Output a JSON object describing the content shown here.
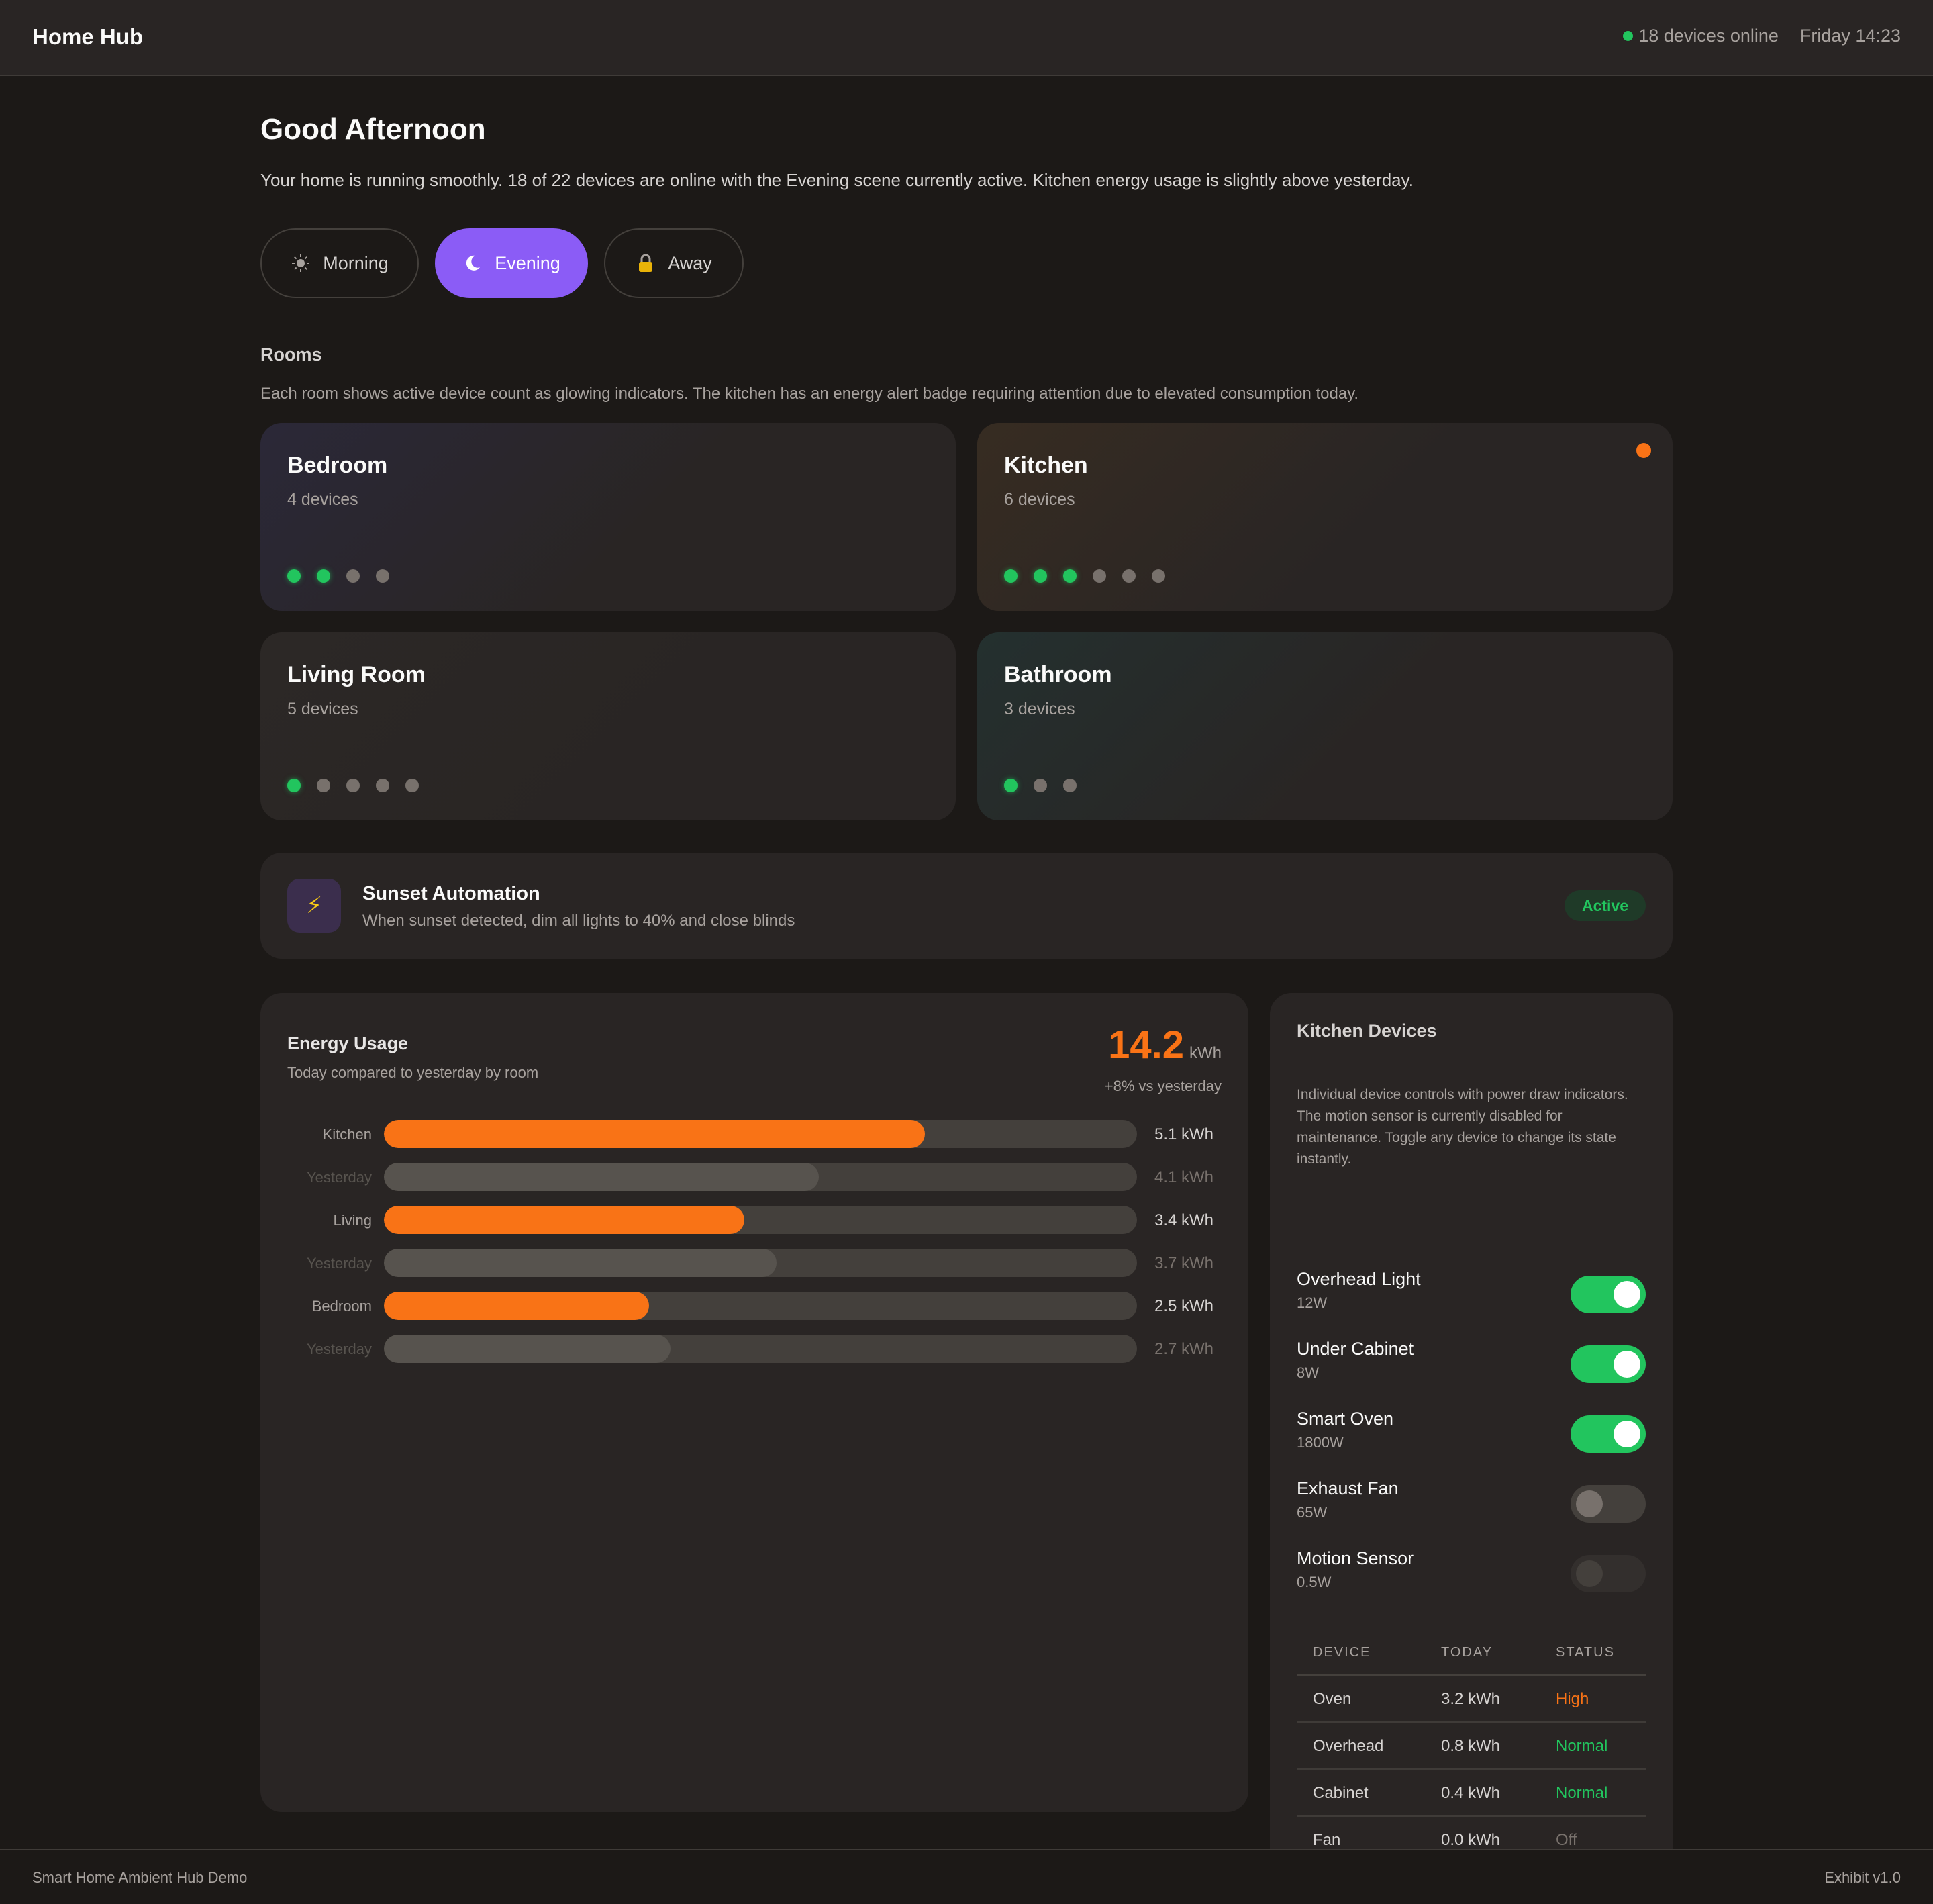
{
  "header": {
    "brand": "Home Hub",
    "status": "18 devices online",
    "datetime": "Friday 14:23"
  },
  "greeting": {
    "title": "Good Afternoon",
    "summary": "Your home is running smoothly. 18 of 22 devices are online with the Evening scene currently active. Kitchen energy usage is slightly above yesterday."
  },
  "scenes": [
    {
      "label": "Morning",
      "icon": "sun-icon",
      "active": false
    },
    {
      "label": "Evening",
      "icon": "moon-icon",
      "active": true
    },
    {
      "label": "Away",
      "icon": "lock-icon",
      "active": false
    }
  ],
  "rooms_section": {
    "label": "Rooms",
    "description": "Each room shows active device count as glowing indicators. The kitchen has an energy alert badge requiring attention due to elevated consumption today."
  },
  "rooms": [
    {
      "name": "Bedroom",
      "count": "4 devices",
      "devices_total": 4,
      "devices_active": 2,
      "alert": false
    },
    {
      "name": "Kitchen",
      "count": "6 devices",
      "devices_total": 6,
      "devices_active": 3,
      "alert": true
    },
    {
      "name": "Living Room",
      "count": "5 devices",
      "devices_total": 5,
      "devices_active": 1,
      "alert": false
    },
    {
      "name": "Bathroom",
      "count": "3 devices",
      "devices_total": 3,
      "devices_active": 1,
      "alert": false
    }
  ],
  "automation": {
    "icon": "lightning-icon",
    "title": "Sunset Automation",
    "description": "When sunset detected, dim all lights to 40% and close blinds",
    "status": "Active"
  },
  "energy": {
    "title": "Energy Usage",
    "subtitle": "Today compared to yesterday by room",
    "total": "14.2",
    "unit": "kWh",
    "delta": "+8% vs yesterday",
    "rows": [
      {
        "label": "Kitchen",
        "value": 5.1,
        "display": "5.1 kWh",
        "yesterday": false
      },
      {
        "label": "Yesterday",
        "value": 4.1,
        "display": "4.1 kWh",
        "yesterday": true
      },
      {
        "label": "Living",
        "value": 3.4,
        "display": "3.4 kWh",
        "yesterday": false
      },
      {
        "label": "Yesterday",
        "value": 3.7,
        "display": "3.7 kWh",
        "yesterday": true
      },
      {
        "label": "Bedroom",
        "value": 2.5,
        "display": "2.5 kWh",
        "yesterday": false
      },
      {
        "label": "Yesterday",
        "value": 2.7,
        "display": "2.7 kWh",
        "yesterday": true
      }
    ],
    "scale_max": 7.1
  },
  "kitchen_devices": {
    "title": "Kitchen Devices",
    "description": "Individual device controls with power draw indicators. The motion sensor is currently disabled for maintenance. Toggle any device to change its state instantly.",
    "devices": [
      {
        "name": "Overhead Light",
        "power": "12W",
        "state": "on"
      },
      {
        "name": "Under Cabinet",
        "power": "8W",
        "state": "on"
      },
      {
        "name": "Smart Oven",
        "power": "1800W",
        "state": "on"
      },
      {
        "name": "Exhaust Fan",
        "power": "65W",
        "state": "off"
      },
      {
        "name": "Motion Sensor",
        "power": "0.5W",
        "state": "disabled"
      }
    ],
    "table": {
      "headers": [
        "DEVICE",
        "TODAY",
        "STATUS"
      ],
      "rows": [
        {
          "device": "Oven",
          "today": "3.2 kWh",
          "status": "High",
          "status_color": "#f97316"
        },
        {
          "device": "Overhead",
          "today": "0.8 kWh",
          "status": "Normal",
          "status_color": "#22c55e"
        },
        {
          "device": "Cabinet",
          "today": "0.4 kWh",
          "status": "Normal",
          "status_color": "#22c55e"
        },
        {
          "device": "Fan",
          "today": "0.0 kWh",
          "status": "Off",
          "status_color": "#78716c"
        }
      ]
    }
  },
  "footer": {
    "left": "Smart Home Ambient Hub Demo",
    "right": "Exhibit v1.0"
  },
  "colors": {
    "accent": "#8b5cf6",
    "energy": "#f97316",
    "online": "#22c55e"
  }
}
